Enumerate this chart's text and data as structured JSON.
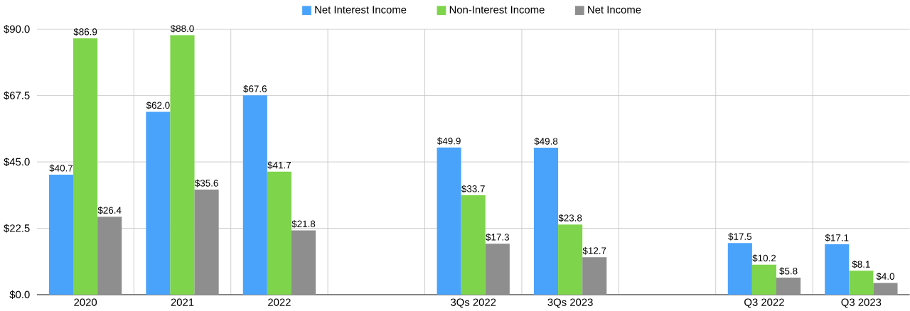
{
  "chart_data": {
    "type": "bar",
    "categories": [
      "2020",
      "2021",
      "2022",
      null,
      "3Qs 2022",
      "3Qs 2023",
      null,
      "Q3 2022",
      "Q3 2023"
    ],
    "series": [
      {
        "name": "Net Interest Income",
        "color": "#4aa3fa",
        "values": [
          40.7,
          62.0,
          67.6,
          null,
          49.9,
          49.8,
          null,
          17.5,
          17.1
        ],
        "value_labels": [
          "$40.7",
          "$62.0",
          "$67.6",
          null,
          "$49.9",
          "$49.8",
          null,
          "$17.5",
          "$17.1"
        ]
      },
      {
        "name": "Non-Interest Income",
        "color": "#7ed44a",
        "values": [
          86.9,
          88.0,
          41.7,
          null,
          33.7,
          23.8,
          null,
          10.2,
          8.1
        ],
        "value_labels": [
          "$86.9",
          "$88.0",
          "$41.7",
          null,
          "$33.7",
          "$23.8",
          null,
          "$10.2",
          "$8.1"
        ]
      },
      {
        "name": "Net Income",
        "color": "#8e8e8e",
        "values": [
          26.4,
          35.6,
          21.8,
          null,
          17.3,
          12.7,
          null,
          5.8,
          4.0
        ],
        "value_labels": [
          "$26.4",
          "$35.6",
          "$21.8",
          null,
          "$17.3",
          "$12.7",
          null,
          "$5.8",
          "$4.0"
        ]
      }
    ],
    "ylim": [
      0,
      90
    ],
    "yticks": [
      {
        "value": 0,
        "label": "$0.0"
      },
      {
        "value": 22.5,
        "label": "$22.5"
      },
      {
        "value": 45,
        "label": "$45.0"
      },
      {
        "value": 67.5,
        "label": "$67.5"
      },
      {
        "value": 90,
        "label": "$90.0"
      }
    ],
    "grid": true,
    "legend": "top"
  }
}
